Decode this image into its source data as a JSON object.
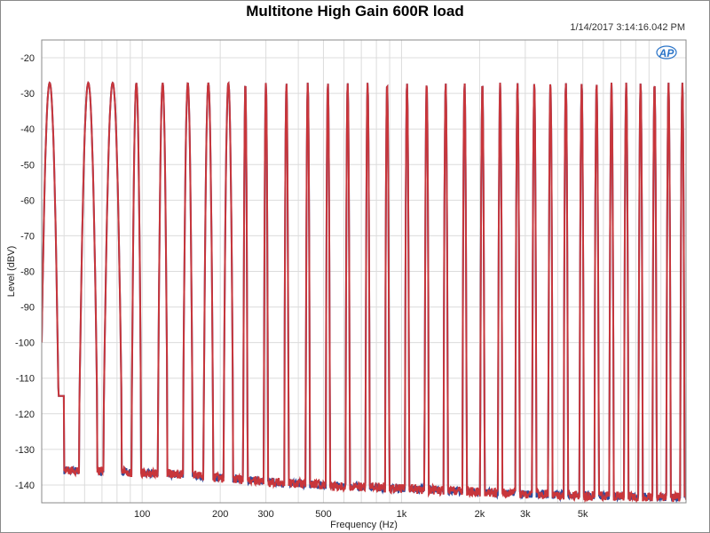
{
  "title": "Multitone High Gain 600R load",
  "timestamp": "1/14/2017 3:14:16.042 PM",
  "logo_text": "AP",
  "colors": {
    "series_blue": "#2f4a9c",
    "series_red": "#c8363b",
    "grid": "#dcdcdc",
    "logo": "#2a74c8"
  },
  "chart_data": {
    "type": "line",
    "title": "Multitone High Gain 600R load",
    "xlabel": "Frequency (Hz)",
    "ylabel": "Level (dBV)",
    "xscale": "log",
    "xlim": [
      41,
      12500
    ],
    "ylim": [
      -145,
      -15
    ],
    "grid": true,
    "y_ticks": [
      -20,
      -30,
      -40,
      -50,
      -60,
      -70,
      -80,
      -90,
      -100,
      -110,
      -120,
      -130,
      -140
    ],
    "x_ticks": [
      {
        "value": 100,
        "label": "100"
      },
      {
        "value": 200,
        "label": "200"
      },
      {
        "value": 300,
        "label": "300"
      },
      {
        "value": 500,
        "label": "500"
      },
      {
        "value": 1000,
        "label": "1k"
      },
      {
        "value": 2000,
        "label": "2k"
      },
      {
        "value": 3000,
        "label": "3k"
      },
      {
        "value": 5000,
        "label": "5k"
      }
    ],
    "tone_level_dbv": -27,
    "tone_frequencies_hz": [
      44,
      62,
      77,
      95,
      120,
      150,
      180,
      215,
      250,
      300,
      360,
      435,
      520,
      620,
      740,
      880,
      1050,
      1250,
      1480,
      1750,
      2050,
      2400,
      2800,
      3250,
      3750,
      4300,
      4950,
      5650,
      6450,
      7350,
      8350,
      9450,
      10700,
      12100
    ],
    "noise_floor": [
      {
        "x": 60,
        "y": -136
      },
      {
        "x": 100,
        "y": -136.5
      },
      {
        "x": 150,
        "y": -137
      },
      {
        "x": 200,
        "y": -138
      },
      {
        "x": 300,
        "y": -139
      },
      {
        "x": 500,
        "y": -140
      },
      {
        "x": 1000,
        "y": -141
      },
      {
        "x": 2000,
        "y": -142
      },
      {
        "x": 3000,
        "y": -142.5
      },
      {
        "x": 5000,
        "y": -143
      },
      {
        "x": 12500,
        "y": -143.5
      }
    ],
    "series": [
      {
        "color": "#2f4a9c"
      },
      {
        "color": "#c8363b"
      }
    ]
  }
}
